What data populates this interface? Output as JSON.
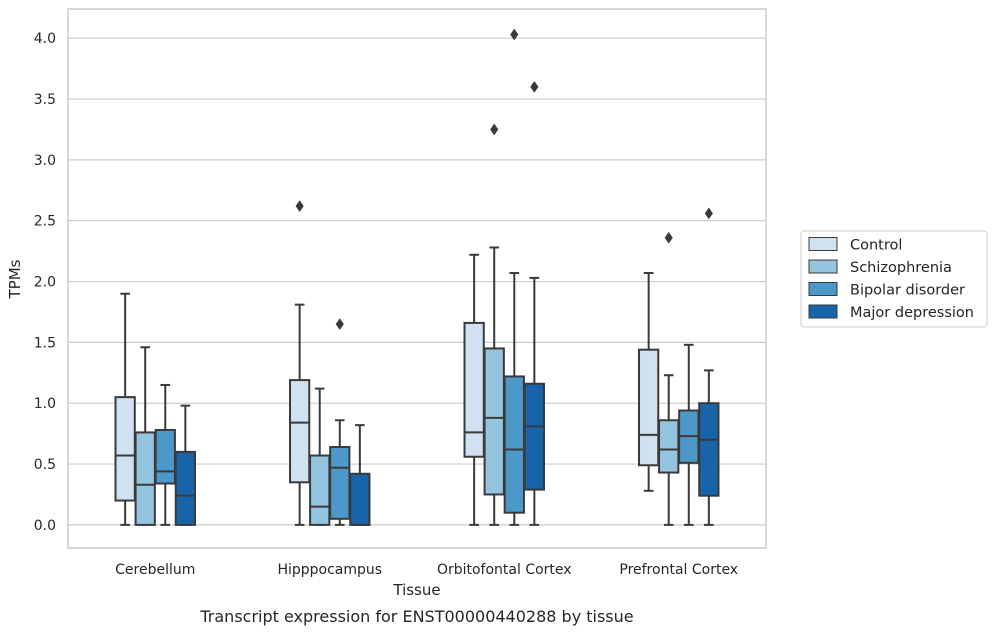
{
  "chart_data": {
    "type": "boxplot",
    "xlabel": "Tissue",
    "ylabel": "TPMs",
    "caption": "Transcript expression for ENST00000440288 by tissue",
    "ylim": [
      -0.19,
      4.24
    ],
    "yticks": [
      "0.0",
      "0.5",
      "1.0",
      "1.5",
      "2.0",
      "2.5",
      "3.0",
      "3.5",
      "4.0"
    ],
    "grid": true,
    "legend_position": "right",
    "categories": [
      "Cerebellum",
      "Hipppocampus",
      "Orbitofontal Cortex",
      "Prefrontal Cortex"
    ],
    "series": [
      {
        "name": "Control",
        "color": "#d0e1f2",
        "boxes": [
          {
            "whislo": 0.0,
            "q1": 0.2,
            "med": 0.57,
            "q3": 1.05,
            "whishi": 1.9,
            "fliers": []
          },
          {
            "whislo": 0.0,
            "q1": 0.35,
            "med": 0.84,
            "q3": 1.19,
            "whishi": 1.81,
            "fliers": [
              2.62
            ]
          },
          {
            "whislo": 0.0,
            "q1": 0.56,
            "med": 0.76,
            "q3": 1.66,
            "whishi": 2.22,
            "fliers": []
          },
          {
            "whislo": 0.28,
            "q1": 0.49,
            "med": 0.74,
            "q3": 1.44,
            "whishi": 2.07,
            "fliers": []
          }
        ]
      },
      {
        "name": "Schizophrenia",
        "color": "#94c4df",
        "boxes": [
          {
            "whislo": 0.0,
            "q1": 0.0,
            "med": 0.33,
            "q3": 0.76,
            "whishi": 1.46,
            "fliers": []
          },
          {
            "whislo": 0.0,
            "q1": 0.0,
            "med": 0.15,
            "q3": 0.57,
            "whishi": 1.12,
            "fliers": []
          },
          {
            "whislo": 0.0,
            "q1": 0.25,
            "med": 0.88,
            "q3": 1.45,
            "whishi": 2.28,
            "fliers": [
              3.25
            ]
          },
          {
            "whislo": 0.0,
            "q1": 0.43,
            "med": 0.62,
            "q3": 0.86,
            "whishi": 1.23,
            "fliers": [
              2.36
            ]
          }
        ]
      },
      {
        "name": "Bipolar disorder",
        "color": "#4b98c9",
        "boxes": [
          {
            "whislo": 0.0,
            "q1": 0.34,
            "med": 0.44,
            "q3": 0.78,
            "whishi": 1.15,
            "fliers": []
          },
          {
            "whislo": 0.0,
            "q1": 0.05,
            "med": 0.47,
            "q3": 0.64,
            "whishi": 0.86,
            "fliers": [
              1.65
            ]
          },
          {
            "whislo": 0.0,
            "q1": 0.1,
            "med": 0.62,
            "q3": 1.22,
            "whishi": 2.07,
            "fliers": [
              4.03
            ]
          },
          {
            "whislo": 0.0,
            "q1": 0.51,
            "med": 0.73,
            "q3": 0.94,
            "whishi": 1.48,
            "fliers": []
          }
        ]
      },
      {
        "name": "Major depression",
        "color": "#1764ab",
        "boxes": [
          {
            "whislo": 0.0,
            "q1": 0.0,
            "med": 0.24,
            "q3": 0.6,
            "whishi": 0.98,
            "fliers": []
          },
          {
            "whislo": 0.0,
            "q1": 0.0,
            "med": 0.0,
            "q3": 0.42,
            "whishi": 0.82,
            "fliers": []
          },
          {
            "whislo": 0.0,
            "q1": 0.29,
            "med": 0.81,
            "q3": 1.16,
            "whishi": 2.03,
            "fliers": [
              3.6
            ]
          },
          {
            "whislo": 0.0,
            "q1": 0.24,
            "med": 0.7,
            "q3": 1.0,
            "whishi": 1.27,
            "fliers": [
              2.56
            ]
          }
        ]
      }
    ],
    "colors": {
      "edge": "#3a3a3a",
      "grid": "#cccccc",
      "frame": "#cccccc",
      "text": "#262626"
    }
  }
}
